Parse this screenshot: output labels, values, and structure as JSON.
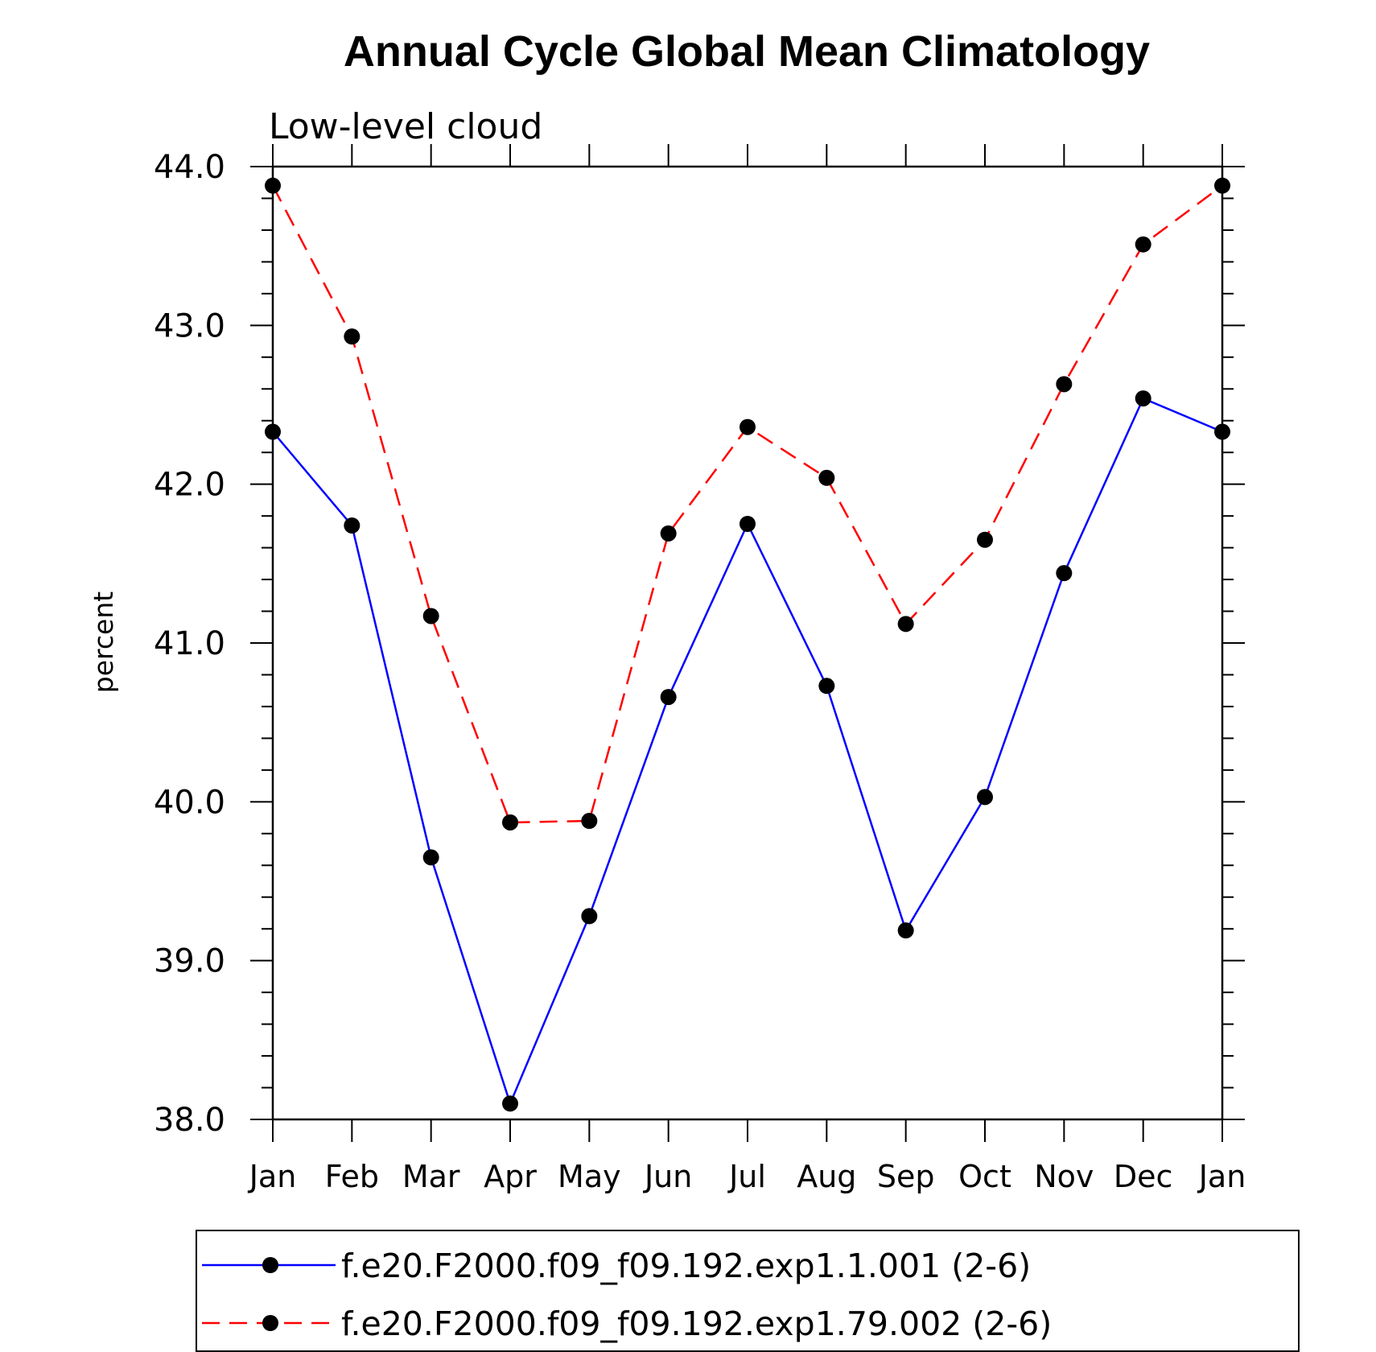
{
  "chart_data": {
    "type": "line",
    "title": "Annual Cycle Global Mean Climatology",
    "subtitle": "Low-level cloud",
    "ylabel": "percent",
    "xlabel": "",
    "categories": [
      "Jan",
      "Feb",
      "Mar",
      "Apr",
      "May",
      "Jun",
      "Jul",
      "Aug",
      "Sep",
      "Oct",
      "Nov",
      "Dec",
      "Jan"
    ],
    "ylim": [
      38.0,
      44.0
    ],
    "yticks": [
      "38.0",
      "39.0",
      "40.0",
      "41.0",
      "42.0",
      "43.0",
      "44.0"
    ],
    "grid": false,
    "legend_position": "bottom",
    "series": [
      {
        "name": "f.e20.F2000.f09_f09.192.exp1.1.001 (2-6)",
        "color": "#0000ff",
        "dash": "solid",
        "marker": "filled-circle",
        "values": [
          42.33,
          41.74,
          39.65,
          38.1,
          39.28,
          40.66,
          41.75,
          40.73,
          39.19,
          40.03,
          41.44,
          42.54,
          42.33
        ]
      },
      {
        "name": "f.e20.F2000.f09_f09.192.exp1.79.002 (2-6)",
        "color": "#ff0000",
        "dash": "dashed",
        "marker": "filled-circle",
        "values": [
          43.88,
          42.93,
          41.17,
          39.87,
          39.88,
          41.69,
          42.36,
          42.04,
          41.12,
          41.65,
          42.63,
          43.51,
          43.88
        ]
      }
    ]
  }
}
